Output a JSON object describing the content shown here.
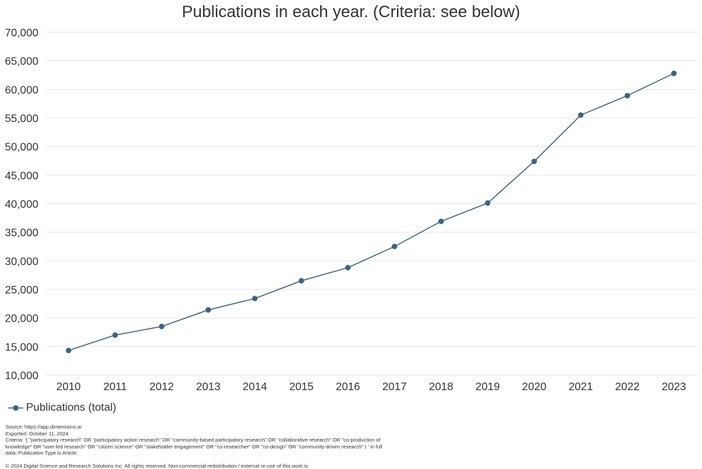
{
  "chart_data": {
    "type": "line",
    "title": "Publications in each year. (Criteria: see below)",
    "xlabel": "",
    "ylabel": "",
    "categories": [
      "2010",
      "2011",
      "2012",
      "2013",
      "2014",
      "2015",
      "2016",
      "2017",
      "2018",
      "2019",
      "2020",
      "2021",
      "2022",
      "2023"
    ],
    "series": [
      {
        "name": "Publications (total)",
        "color": "#3d6380",
        "values": [
          14300,
          17000,
          18500,
          21400,
          23400,
          26500,
          28800,
          32500,
          36900,
          40100,
          47400,
          55500,
          58900,
          62800
        ]
      }
    ],
    "ylim": [
      10000,
      70000
    ],
    "yticks": [
      "10,000",
      "15,000",
      "20,000",
      "25,000",
      "30,000",
      "35,000",
      "40,000",
      "45,000",
      "50,000",
      "55,000",
      "60,000",
      "65,000",
      "70,000"
    ],
    "grid": true,
    "legend": "bottom-left"
  },
  "footer": {
    "source": "Source: https://app.dimensions.ai",
    "exported": "Exported: October 11, 2024",
    "criteria": "Criteria: '( \"participatory research\" OR \"participatory action research\" OR \"community-based participatory research\" OR \"collaborative research\" OR \"co-production of knowledge\" OR \"user-led research\" OR \"citizen science\" OR \"stakeholder engagement\" OR \"co-researcher\" OR \"co-design\" OR \"community-driven research\" ) ' in full data; Publication Type is Article.",
    "copyright": "© 2024 Digital Science and Research Solutions Inc. All rights reserved. Non-commercial redistribution / external re-use of this work is"
  }
}
